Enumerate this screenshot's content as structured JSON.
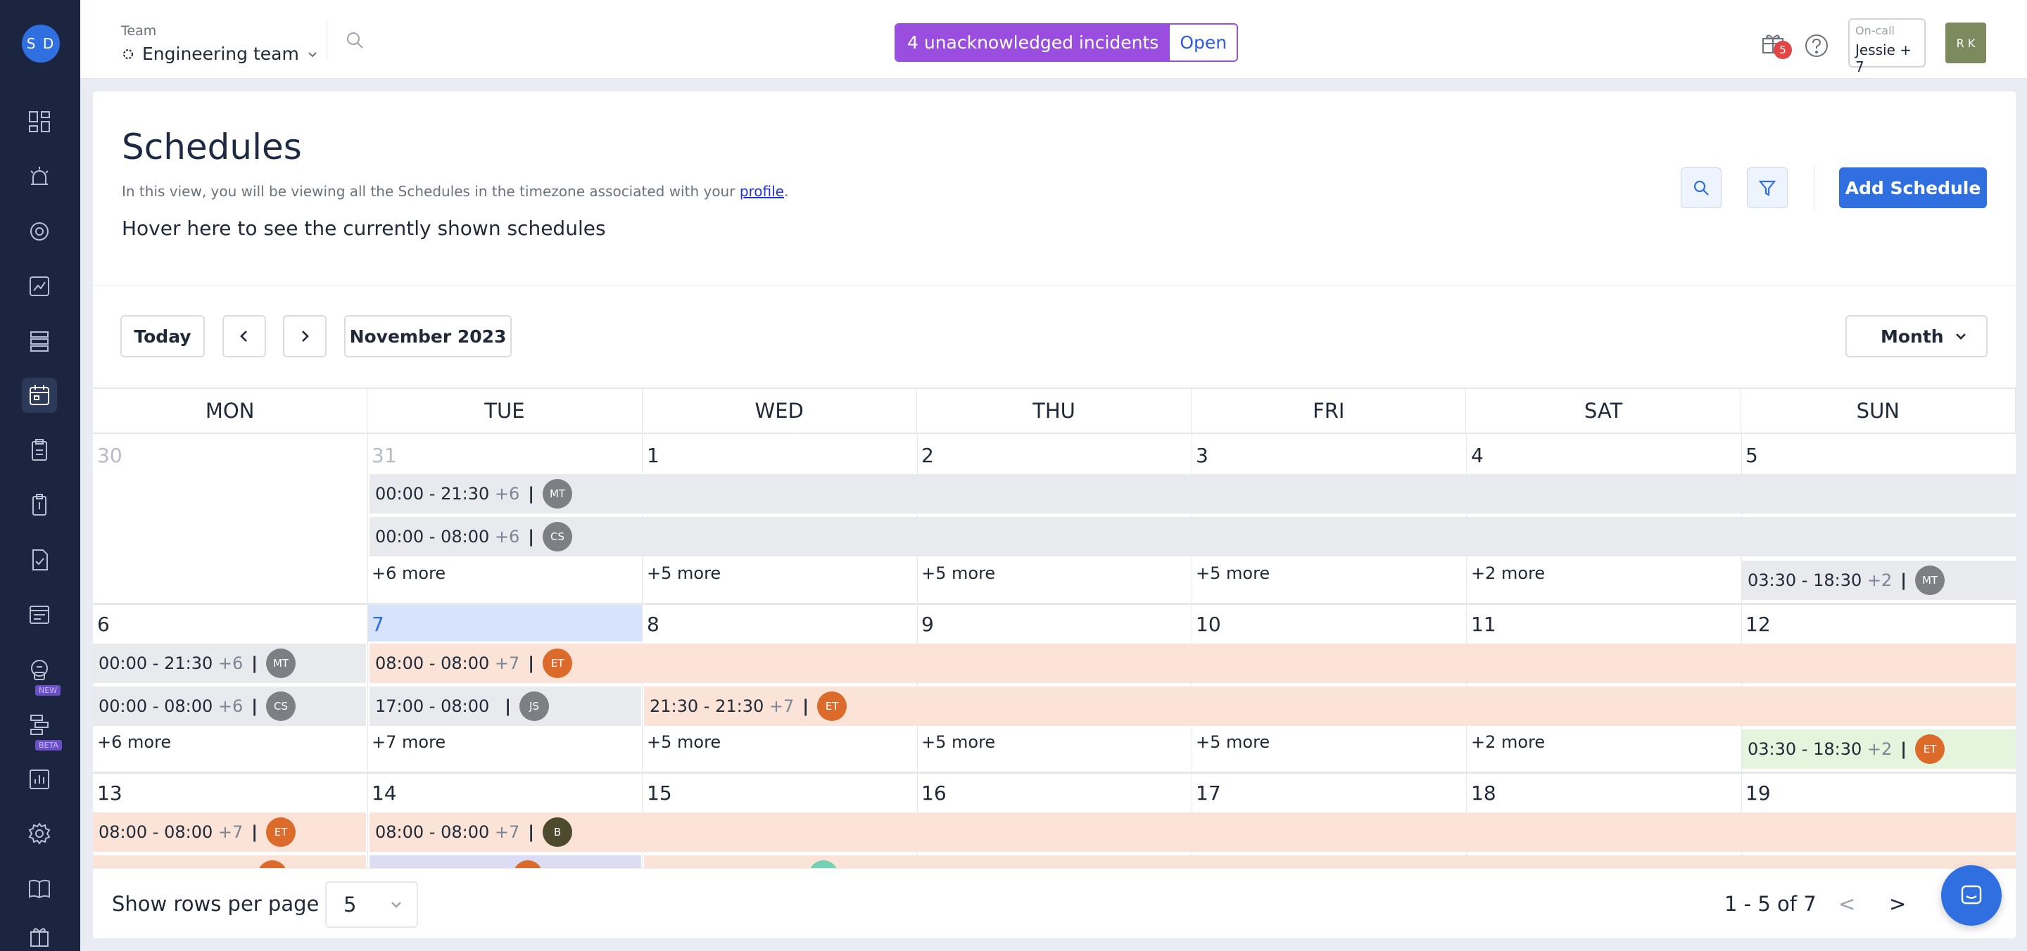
{
  "sidebar": {
    "user_initials": "S D",
    "tags": {
      "new": "NEW",
      "beta": "BETA"
    }
  },
  "topbar": {
    "team_label": "Team",
    "team_name": "Engineering team",
    "incident_message": "4 unacknowledged incidents",
    "incident_action": "Open",
    "gift_badge_count": "5",
    "oncall_label": "On-call",
    "oncall_value": "Jessie + 7",
    "profile_initials": "R K"
  },
  "header": {
    "title": "Schedules",
    "subtitle_prefix": "In this view, you will be viewing all the Schedules in the timezone associated with your ",
    "subtitle_link": "profile",
    "subtitle_suffix": ".",
    "hover_text": "Hover here to see the currently shown schedules",
    "add_button": "Add Schedule"
  },
  "toolbar": {
    "today": "Today",
    "period": "November 2023",
    "view": "Month"
  },
  "calendar": {
    "weekdays": [
      "MON",
      "TUE",
      "WED",
      "THU",
      "FRI",
      "SAT",
      "SUN"
    ],
    "week1": {
      "days": [
        "30",
        "31",
        "1",
        "2",
        "3",
        "4",
        "5"
      ],
      "bar1": {
        "time": "00:00 - 21:30",
        "extra": "+6",
        "initials": "MT"
      },
      "bar2": {
        "time": "00:00 - 08:00",
        "extra": "+6",
        "initials": "CS"
      },
      "more": [
        "+6 more",
        "+5 more",
        "+5 more",
        "+5 more",
        "+2 more"
      ],
      "sun_bar": {
        "time": "03:30 - 18:30",
        "extra": "+2",
        "initials": "MT"
      }
    },
    "week2": {
      "days": [
        "6",
        "7",
        "8",
        "9",
        "10",
        "11",
        "12"
      ],
      "mon_bar1": {
        "time": "00:00 - 21:30",
        "extra": "+6",
        "initials": "MT"
      },
      "mon_bar2": {
        "time": "00:00 - 08:00",
        "extra": "+6",
        "initials": "CS"
      },
      "tue_bar1": {
        "time": "08:00 - 08:00",
        "extra": "+7",
        "initials": "ET"
      },
      "tue_bar2": {
        "time": "17:00 - 08:00",
        "initials": "JS"
      },
      "wed_bar": {
        "time": "21:30 - 21:30",
        "extra": "+7",
        "initials": "ET"
      },
      "more": [
        "+6 more",
        "+7 more",
        "+5 more",
        "+5 more",
        "+5 more",
        "+2 more"
      ],
      "sun_bar": {
        "time": "03:30 - 18:30",
        "extra": "+2",
        "initials": "ET"
      }
    },
    "week3": {
      "days": [
        "13",
        "14",
        "15",
        "16",
        "17",
        "18",
        "19"
      ],
      "mon_bar": {
        "time": "08:00 - 08:00",
        "extra": "+7",
        "initials": "ET"
      },
      "tue_bar": {
        "time": "08:00 - 08:00",
        "extra": "+7",
        "initials": "B"
      }
    }
  },
  "footer": {
    "rows_label": "Show rows per page",
    "rows_value": "5",
    "range": "1 - 5 of 7",
    "prev": "<",
    "next": ">"
  },
  "colors": {
    "accent": "#2f6fe0",
    "incident": "#9a4ee0",
    "sidebar": "#1c2540",
    "event_grey": "#e8eaee",
    "event_peach": "#fbe3d7",
    "event_green": "#e5f4dc"
  }
}
